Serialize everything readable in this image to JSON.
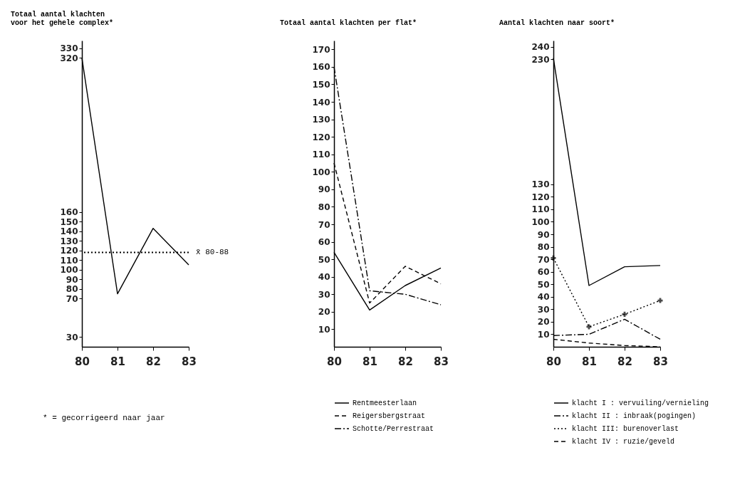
{
  "chart_data": [
    {
      "type": "line",
      "title": "Totaal aantal klachten\nvoor het gehele complex*",
      "categories": [
        "80",
        "81",
        "82",
        "83"
      ],
      "values": [
        320,
        75,
        143,
        105
      ],
      "color": "#000000",
      "ylim": [
        20,
        338
      ],
      "yticks": [
        30,
        70,
        80,
        90,
        100,
        110,
        120,
        130,
        140,
        150,
        160,
        320,
        330
      ],
      "grid": false,
      "line_style": "solid",
      "ref_lines": [
        {
          "axis": "y",
          "value": 118,
          "label": "x̄ 80-88",
          "line_style": "dotted",
          "color": "#000000"
        }
      ],
      "annotations": [
        "* = gecorrigeerd naar jaar"
      ]
    },
    {
      "type": "line",
      "title": "Totaal aantal klachten per flat*",
      "categories": [
        "80",
        "81",
        "82",
        "83"
      ],
      "ylim": [
        0,
        175
      ],
      "yticks": [
        10,
        20,
        30,
        40,
        50,
        60,
        70,
        80,
        90,
        100,
        110,
        120,
        130,
        140,
        150,
        160,
        170
      ],
      "grid": false,
      "legend": "bottom",
      "series": [
        {
          "name": "Rentmeesterlaan",
          "color": "#000000",
          "line_style": "solid",
          "values": [
            54,
            21,
            35,
            45
          ]
        },
        {
          "name": "Reigersbergstraat",
          "color": "#000000",
          "line_style": "dashed",
          "values": [
            105,
            25,
            46,
            36
          ]
        },
        {
          "name": "Schotte/Perrestraat",
          "color": "#000000",
          "line_style": "dashdot",
          "values": [
            160,
            32,
            30,
            24
          ]
        }
      ]
    },
    {
      "type": "line",
      "title": "Aantal klachten naar soort*",
      "categories": [
        "80",
        "81",
        "82",
        "83"
      ],
      "ylim": [
        0,
        245
      ],
      "yticks": [
        10,
        20,
        30,
        40,
        50,
        60,
        70,
        80,
        90,
        100,
        110,
        120,
        130,
        230,
        240
      ],
      "grid": false,
      "legend": "bottom",
      "series": [
        {
          "name": "klacht I : vervuiling/vernieling",
          "color": "#000000",
          "line_style": "solid",
          "values": [
            231,
            49,
            64,
            65
          ]
        },
        {
          "name": "klacht II : inbraak(pogingen)",
          "color": "#000000",
          "line_style": "dashdot",
          "values": [
            9,
            10,
            22,
            6
          ]
        },
        {
          "name": "klacht III: burenoverlast",
          "color": "#000000",
          "line_style": "dotted",
          "marker": "cross",
          "values": [
            71,
            16,
            26,
            37
          ]
        },
        {
          "name": "klacht IV : ruzie/geveld",
          "color": "#000000",
          "line_style": "dashed",
          "values": [
            6,
            3,
            1,
            0
          ]
        }
      ]
    }
  ]
}
